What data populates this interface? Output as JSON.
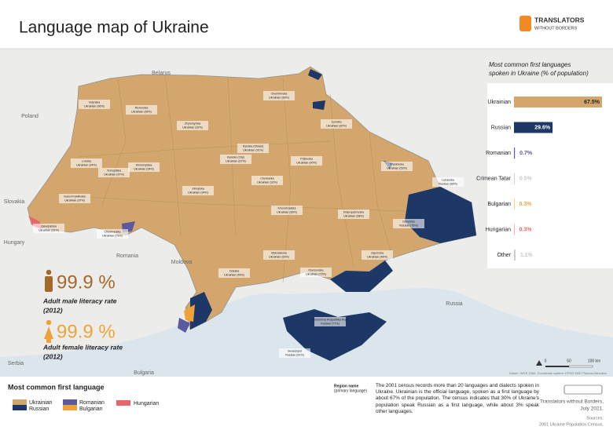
{
  "header": {
    "title": "Language map of Ukraine",
    "logo_line1": "TRANSLATORS",
    "logo_line2": "WITHOUT BORDERS"
  },
  "map": {
    "countries": [
      "Belarus",
      "Poland",
      "Slovakia",
      "Hungary",
      "Romania",
      "Moldova",
      "Russia",
      "Serbia",
      "Bulgaria"
    ],
    "regions": [
      {
        "name": "Volynska",
        "language": "Ukrainian (96%)"
      },
      {
        "name": "Rivnenska",
        "language": "Ukrainian (96%)"
      },
      {
        "name": "Zhytomyrska",
        "language": "Ukrainian (92%)"
      },
      {
        "name": "Chernihivska",
        "language": "Ukrainian (89%)"
      },
      {
        "name": "Sumska",
        "language": "Ukrainian (82%)"
      },
      {
        "name": "Lvivska",
        "language": "Ukrainian (94%)"
      },
      {
        "name": "Ternopilska",
        "language": "Ukrainian (97%)"
      },
      {
        "name": "Khmelnytska",
        "language": "Ukrainian (94%)"
      },
      {
        "name": "Kyivska (Oblast)",
        "language": "Ukrainian (91%)"
      },
      {
        "name": "Kyivska (City)",
        "language": "Ukrainian (67%)"
      },
      {
        "name": "Poltavska",
        "language": "Ukrainian (90%)"
      },
      {
        "name": "Kharkivska",
        "language": "Ukrainian (53%)"
      },
      {
        "name": "Ivano-Frankivska",
        "language": "Ukrainian (97%)"
      },
      {
        "name": "Vinnytska",
        "language": "Ukrainian (94%)"
      },
      {
        "name": "Cherkaska",
        "language": "Ukrainian (92%)"
      },
      {
        "name": "Zakarpatska",
        "language": "Ukrainian (81%)"
      },
      {
        "name": "Chernivetska",
        "language": "Ukrainian (75%)"
      },
      {
        "name": "Kirovohradska",
        "language": "Ukrainian (89%)"
      },
      {
        "name": "Dnipropetrovska",
        "language": "Ukrainian (68%)"
      },
      {
        "name": "Luhanska",
        "language": "Russian (68%)"
      },
      {
        "name": "Donetska",
        "language": "Russian (75%)"
      },
      {
        "name": "Mykolaivska",
        "language": "Ukrainian (69%)"
      },
      {
        "name": "Odeska",
        "language": "Ukrainian (46%)"
      },
      {
        "name": "Khersonska",
        "language": "Ukrainian (73%)"
      },
      {
        "name": "Zaporizka",
        "language": "Ukrainian (48%)"
      },
      {
        "name": "Avtonomna Respublika Krym",
        "language": "Russian (77%)"
      },
      {
        "name": "Sevastopol",
        "language": "Russian (91%)"
      }
    ],
    "scale": [
      "0",
      "50",
      "100 km"
    ],
    "datum": "Datum: WGS 1984. Coordinate system: EPSG 3857 Pseudo-Mercator"
  },
  "chart_data": {
    "type": "bar",
    "title": [
      "Most common first languages",
      "spoken in Ukraine (% of population)"
    ],
    "categories": [
      "Ukrainian",
      "Russian",
      "Romanian",
      "Crimean Tatar",
      "Bulgarian",
      "Hungarian",
      "Other"
    ],
    "values": [
      67.5,
      29.6,
      0.7,
      0.5,
      0.3,
      0.3,
      1.1
    ],
    "value_labels": [
      "67.5%",
      "29.6%",
      "0.7%",
      "0.5%",
      "0.3%",
      "0.3%",
      "1.1%"
    ],
    "colors": [
      "#d2a66d",
      "#1d3766",
      "#5b5aa0",
      "#c8c8c8",
      "#f0a23a",
      "#e8656a",
      "#c8c8c8"
    ]
  },
  "stats": [
    {
      "value": "99.9 %",
      "label": "Adult male literacy rate",
      "year": "(2012)"
    },
    {
      "value": "99.9 %",
      "label": "Adult female literacy rate",
      "year": "(2012)"
    }
  ],
  "legend": {
    "title": "Most common first language",
    "items": [
      "Ukrainian",
      "Russian",
      "Romanian",
      "Bulgarian",
      "Hungarian"
    ],
    "sample_name": "Region name",
    "sample_language": "(primary language)"
  },
  "description": "The 2001 census records more than 20 languages and dialects spoken in Ukraine. Ukrainian is the official language, spoken as a first language by about 67% of the population. The census indicates that 30% of Ukraine's population speak Russian as a first language, while about 3% speak other languages.",
  "credits": {
    "org": "Translators without Borders,",
    "date": "July 2021.",
    "sources_label": "Sources:",
    "sources": "2001 Ukraine Population Census."
  }
}
